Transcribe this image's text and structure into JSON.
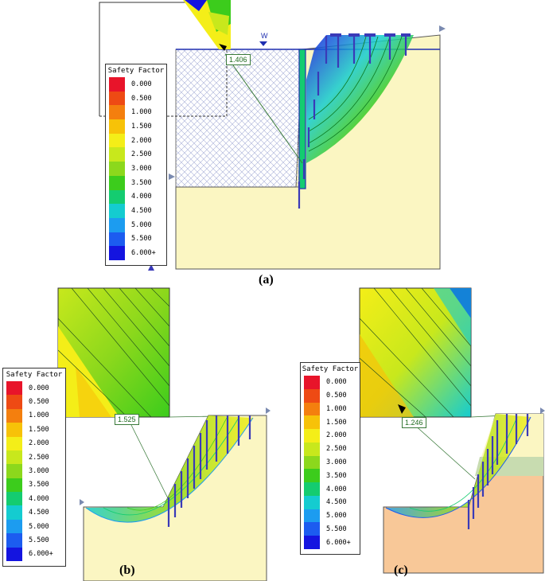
{
  "legend": {
    "title": "Safety Factor",
    "labels": [
      "0.000",
      "0.500",
      "1.000",
      "1.500",
      "2.000",
      "2.500",
      "3.000",
      "3.500",
      "4.000",
      "4.500",
      "5.000",
      "5.500",
      "6.000+"
    ],
    "colors": [
      "#e8142a",
      "#ee4a14",
      "#f47f0e",
      "#f7c208",
      "#f4ee18",
      "#c8e81c",
      "#8cd81c",
      "#3ccc1c",
      "#14cc70",
      "#14ccd0",
      "#1c9cf0",
      "#1c5cf0",
      "#1414e0"
    ]
  },
  "panels": {
    "a": {
      "caption": "(a)",
      "min_sf": "1.406",
      "water_label": "W"
    },
    "b": {
      "caption": "(b)",
      "min_sf": "1.525"
    },
    "c": {
      "caption": "(c)",
      "min_sf": "1.246"
    }
  }
}
